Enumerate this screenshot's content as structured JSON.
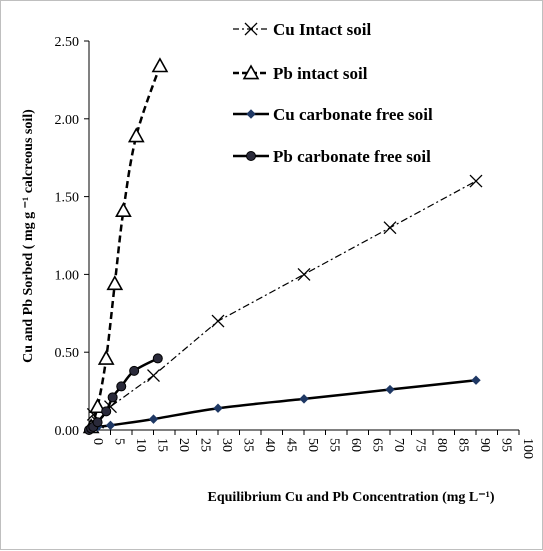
{
  "chart_data": {
    "type": "line",
    "title": "",
    "xlabel": "Equilibrium  Cu and Pb Concentration  (mg L⁻¹)",
    "ylabel": "Cu and Pb Sorbed ( mg g ⁻¹ calcreous soil)",
    "xlim": [
      0,
      100
    ],
    "ylim": [
      0,
      2.5
    ],
    "x_ticks": [
      "0",
      "5",
      "10",
      "15",
      "20",
      "25",
      "30",
      "35",
      "40",
      "45",
      "50",
      "55",
      "60",
      "65",
      "70",
      "75",
      "80",
      "85",
      "90",
      "95",
      "100"
    ],
    "y_ticks": [
      "0.00",
      "0.50",
      "1.00",
      "1.50",
      "2.00",
      "2.50"
    ],
    "grid": false,
    "legend_position": "top-right",
    "series": [
      {
        "name": "Cu Intact soil",
        "color": "#000000",
        "line_style": "dashdot",
        "marker": "x",
        "x": [
          1,
          2,
          5,
          15,
          30,
          50,
          70,
          90
        ],
        "y": [
          0.1,
          0.05,
          0.15,
          0.35,
          0.7,
          1.0,
          1.3,
          1.6
        ]
      },
      {
        "name": "Pb intact soil",
        "color": "#000000",
        "line_style": "dashed",
        "marker": "triangle",
        "x": [
          0.5,
          2,
          4,
          6,
          8,
          11,
          16.5
        ],
        "y": [
          0.02,
          0.15,
          0.46,
          0.94,
          1.41,
          1.89,
          2.34
        ]
      },
      {
        "name": "Cu carbonate free soil",
        "color": "#000000",
        "line_style": "solid",
        "marker": "diamond",
        "x": [
          0,
          0.5,
          1,
          2,
          5,
          15,
          30,
          50,
          70,
          90
        ],
        "y": [
          0,
          0.005,
          0.01,
          0.02,
          0.03,
          0.07,
          0.14,
          0.2,
          0.26,
          0.32
        ]
      },
      {
        "name": "Pb carbonate free soil",
        "color": "#000000",
        "line_style": "solid",
        "marker": "circle",
        "x": [
          0,
          0.5,
          1,
          2,
          4,
          5.5,
          7.5,
          10.5,
          16
        ],
        "y": [
          0,
          0.01,
          0.02,
          0.05,
          0.12,
          0.21,
          0.28,
          0.38,
          0.46
        ]
      }
    ]
  }
}
